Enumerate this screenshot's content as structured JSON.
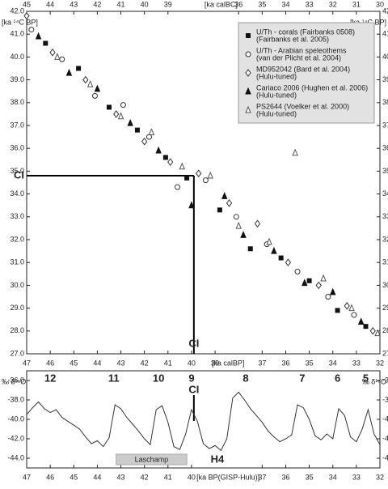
{
  "chart_data": [
    {
      "type": "scatter",
      "xlabel": "[ka calBP]",
      "x2label": "[ka calBC]",
      "ylabel": "[ka ¹⁴C BP]",
      "xlim": [
        47,
        32
      ],
      "xticks": [
        47,
        46,
        45,
        44,
        43,
        42,
        41,
        40,
        39,
        37,
        36,
        35,
        34,
        33,
        32
      ],
      "x2lim": [
        45,
        30
      ],
      "x2ticks": [
        45,
        44,
        43,
        42,
        41,
        40,
        39,
        36,
        35,
        34,
        33,
        32,
        31,
        30
      ],
      "ylim": [
        27,
        42
      ],
      "yticks": [
        {
          "value": 27,
          "label": "27.0"
        },
        {
          "value": 28,
          "label": "28.0"
        },
        {
          "value": 29,
          "label": "29.0"
        },
        {
          "value": 30,
          "label": "30.0"
        },
        {
          "value": 31,
          "label": "31.0"
        },
        {
          "value": 32,
          "label": "32.0"
        },
        {
          "value": 33,
          "label": "33.0"
        },
        {
          "value": 34,
          "label": "34.0"
        },
        {
          "value": 35,
          "label": "35.0"
        },
        {
          "value": 36,
          "label": "36.0"
        },
        {
          "value": 37,
          "label": "37.0"
        },
        {
          "value": 38,
          "label": "38.0"
        },
        {
          "value": 39,
          "label": "39.0"
        },
        {
          "value": 40,
          "label": "40.0"
        },
        {
          "value": 41,
          "label": "41.0"
        },
        {
          "value": 42,
          "label": "42.0"
        }
      ],
      "ci": {
        "label": "CI",
        "x": 39.9,
        "y": 34.8
      },
      "series": [
        {
          "name": "U/Th - corals (Fairbanks 0508)",
          "ref": "(Fairbanks et al. 2005)",
          "color": "#111111",
          "marker": "square",
          "x": [
            46.2,
            44.8,
            43.5,
            42.3,
            41.1,
            40.2,
            38.8,
            37.5,
            36.2,
            35.0,
            33.8,
            32.6
          ],
          "values": [
            40.6,
            39.5,
            37.8,
            36.8,
            35.6,
            34.7,
            33.3,
            31.6,
            31.2,
            30.2,
            28.9,
            28.2
          ]
        },
        {
          "name": "U/Th - Arabian speleothems",
          "ref": "(van der Plicht et al. 2004)",
          "color": "#333333",
          "marker": "circle",
          "x": [
            46.8,
            45.5,
            44.1,
            42.9,
            41.8,
            40.6,
            39.4,
            38.1,
            36.8,
            35.5,
            34.2,
            33.1
          ],
          "values": [
            41.2,
            39.9,
            38.3,
            37.9,
            36.5,
            34.3,
            34.6,
            33.0,
            31.8,
            30.6,
            29.5,
            28.7
          ]
        },
        {
          "name": "MD952042 (Bard et al. 2004)",
          "ref": "(Hulu-tuned)",
          "color": "#333333",
          "marker": "diamond",
          "x": [
            47.0,
            45.9,
            44.5,
            43.2,
            42.0,
            40.9,
            39.7,
            38.4,
            37.2,
            35.9,
            34.6,
            33.4,
            32.3
          ],
          "values": [
            41.8,
            40.2,
            39.0,
            37.5,
            36.3,
            35.4,
            34.9,
            33.6,
            32.7,
            31.0,
            30.0,
            29.1,
            28.0
          ]
        },
        {
          "name": "Cariaco 2006 (Hughen et al. 2006)",
          "ref": "(Hulu-tuned)",
          "color": "#111111",
          "marker": "triangle",
          "x": [
            46.5,
            45.2,
            44.0,
            42.6,
            41.4,
            40.0,
            38.6,
            37.8,
            36.5,
            35.2,
            34.0,
            32.8
          ],
          "values": [
            40.9,
            39.3,
            38.6,
            37.1,
            35.9,
            33.5,
            33.9,
            32.2,
            31.5,
            30.1,
            29.7,
            28.4
          ]
        },
        {
          "name": "PS2644 (Voelker et al. 2000)",
          "ref": "(Hulu-tuned)",
          "color": "#555555",
          "marker": "open-triangle",
          "x": [
            45.7,
            44.3,
            43.0,
            41.7,
            40.4,
            39.2,
            38.0,
            36.7,
            35.6,
            34.4,
            33.2,
            32.1
          ],
          "values": [
            40.0,
            38.8,
            37.4,
            36.7,
            35.2,
            34.8,
            32.6,
            31.9,
            35.8,
            30.3,
            29.0,
            27.9
          ]
        }
      ]
    },
    {
      "type": "line",
      "xlabel": "[ka BP(GISP-Hulu)]",
      "ylabel": "‰ δ¹⁸O",
      "xlim": [
        47,
        32
      ],
      "xticks": [
        47,
        46,
        45,
        44,
        43,
        42,
        41,
        40,
        37,
        36,
        35,
        34,
        33,
        32
      ],
      "ylim": [
        -45,
        -35
      ],
      "yticks": [
        {
          "value": -36,
          "label": "-36.0"
        },
        {
          "value": -38,
          "label": "-38.0"
        },
        {
          "value": -40,
          "label": "-40.0"
        },
        {
          "value": -42,
          "label": "-42.0"
        },
        {
          "value": -44,
          "label": "-44.0"
        }
      ],
      "stadials": [
        {
          "text": "12",
          "x": 46.0
        },
        {
          "text": "11",
          "x": 43.3
        },
        {
          "text": "10",
          "x": 41.4
        },
        {
          "text": "9",
          "x": 40.0
        },
        {
          "text": "8",
          "x": 37.7
        },
        {
          "text": "7",
          "x": 35.3
        },
        {
          "text": "6",
          "x": 33.8
        },
        {
          "text": "5",
          "x": 32.6
        }
      ],
      "ci": {
        "label": "CI",
        "x": 39.9
      },
      "laschamp": {
        "label": "Laschamp",
        "x": [
          43.2,
          40.2
        ]
      },
      "h4": {
        "label": "H4",
        "x": 38.9
      },
      "series": [
        {
          "color": "#333333",
          "x": [
            47.0,
            46.75,
            46.5,
            46.25,
            46.0,
            45.75,
            45.5,
            45.25,
            45.0,
            44.75,
            44.5,
            44.25,
            44.0,
            43.75,
            43.5,
            43.25,
            43.0,
            42.75,
            42.5,
            42.25,
            42.0,
            41.75,
            41.5,
            41.25,
            41.0,
            40.75,
            40.5,
            40.25,
            40.0,
            39.75,
            39.5,
            39.25,
            39.0,
            38.75,
            38.5,
            38.25,
            38.0,
            37.75,
            37.5,
            37.25,
            37.0,
            36.75,
            36.5,
            36.25,
            36.0,
            35.75,
            35.5,
            35.25,
            35.0,
            34.75,
            34.5,
            34.25,
            34.0,
            33.75,
            33.5,
            33.25,
            33.0,
            32.75,
            32.5,
            32.25,
            32.0
          ],
          "values": [
            -39.5,
            -38.8,
            -38.2,
            -38.9,
            -39.3,
            -39.0,
            -39.8,
            -40.2,
            -40.6,
            -41.0,
            -41.8,
            -42.5,
            -42.2,
            -42.8,
            -41.9,
            -38.5,
            -38.9,
            -39.8,
            -40.5,
            -41.2,
            -42.0,
            -42.6,
            -39.0,
            -38.6,
            -40.3,
            -42.8,
            -43.1,
            -41.5,
            -39.0,
            -40.2,
            -42.5,
            -43.0,
            -42.7,
            -43.2,
            -42.0,
            -37.8,
            -37.2,
            -38.0,
            -38.9,
            -39.6,
            -40.3,
            -41.2,
            -41.8,
            -42.3,
            -42.0,
            -41.6,
            -38.5,
            -38.8,
            -40.0,
            -41.7,
            -42.1,
            -41.5,
            -42.0,
            -38.9,
            -39.6,
            -41.8,
            -42.3,
            -41.0,
            -39.0,
            -41.5,
            -42.6
          ]
        }
      ]
    }
  ]
}
